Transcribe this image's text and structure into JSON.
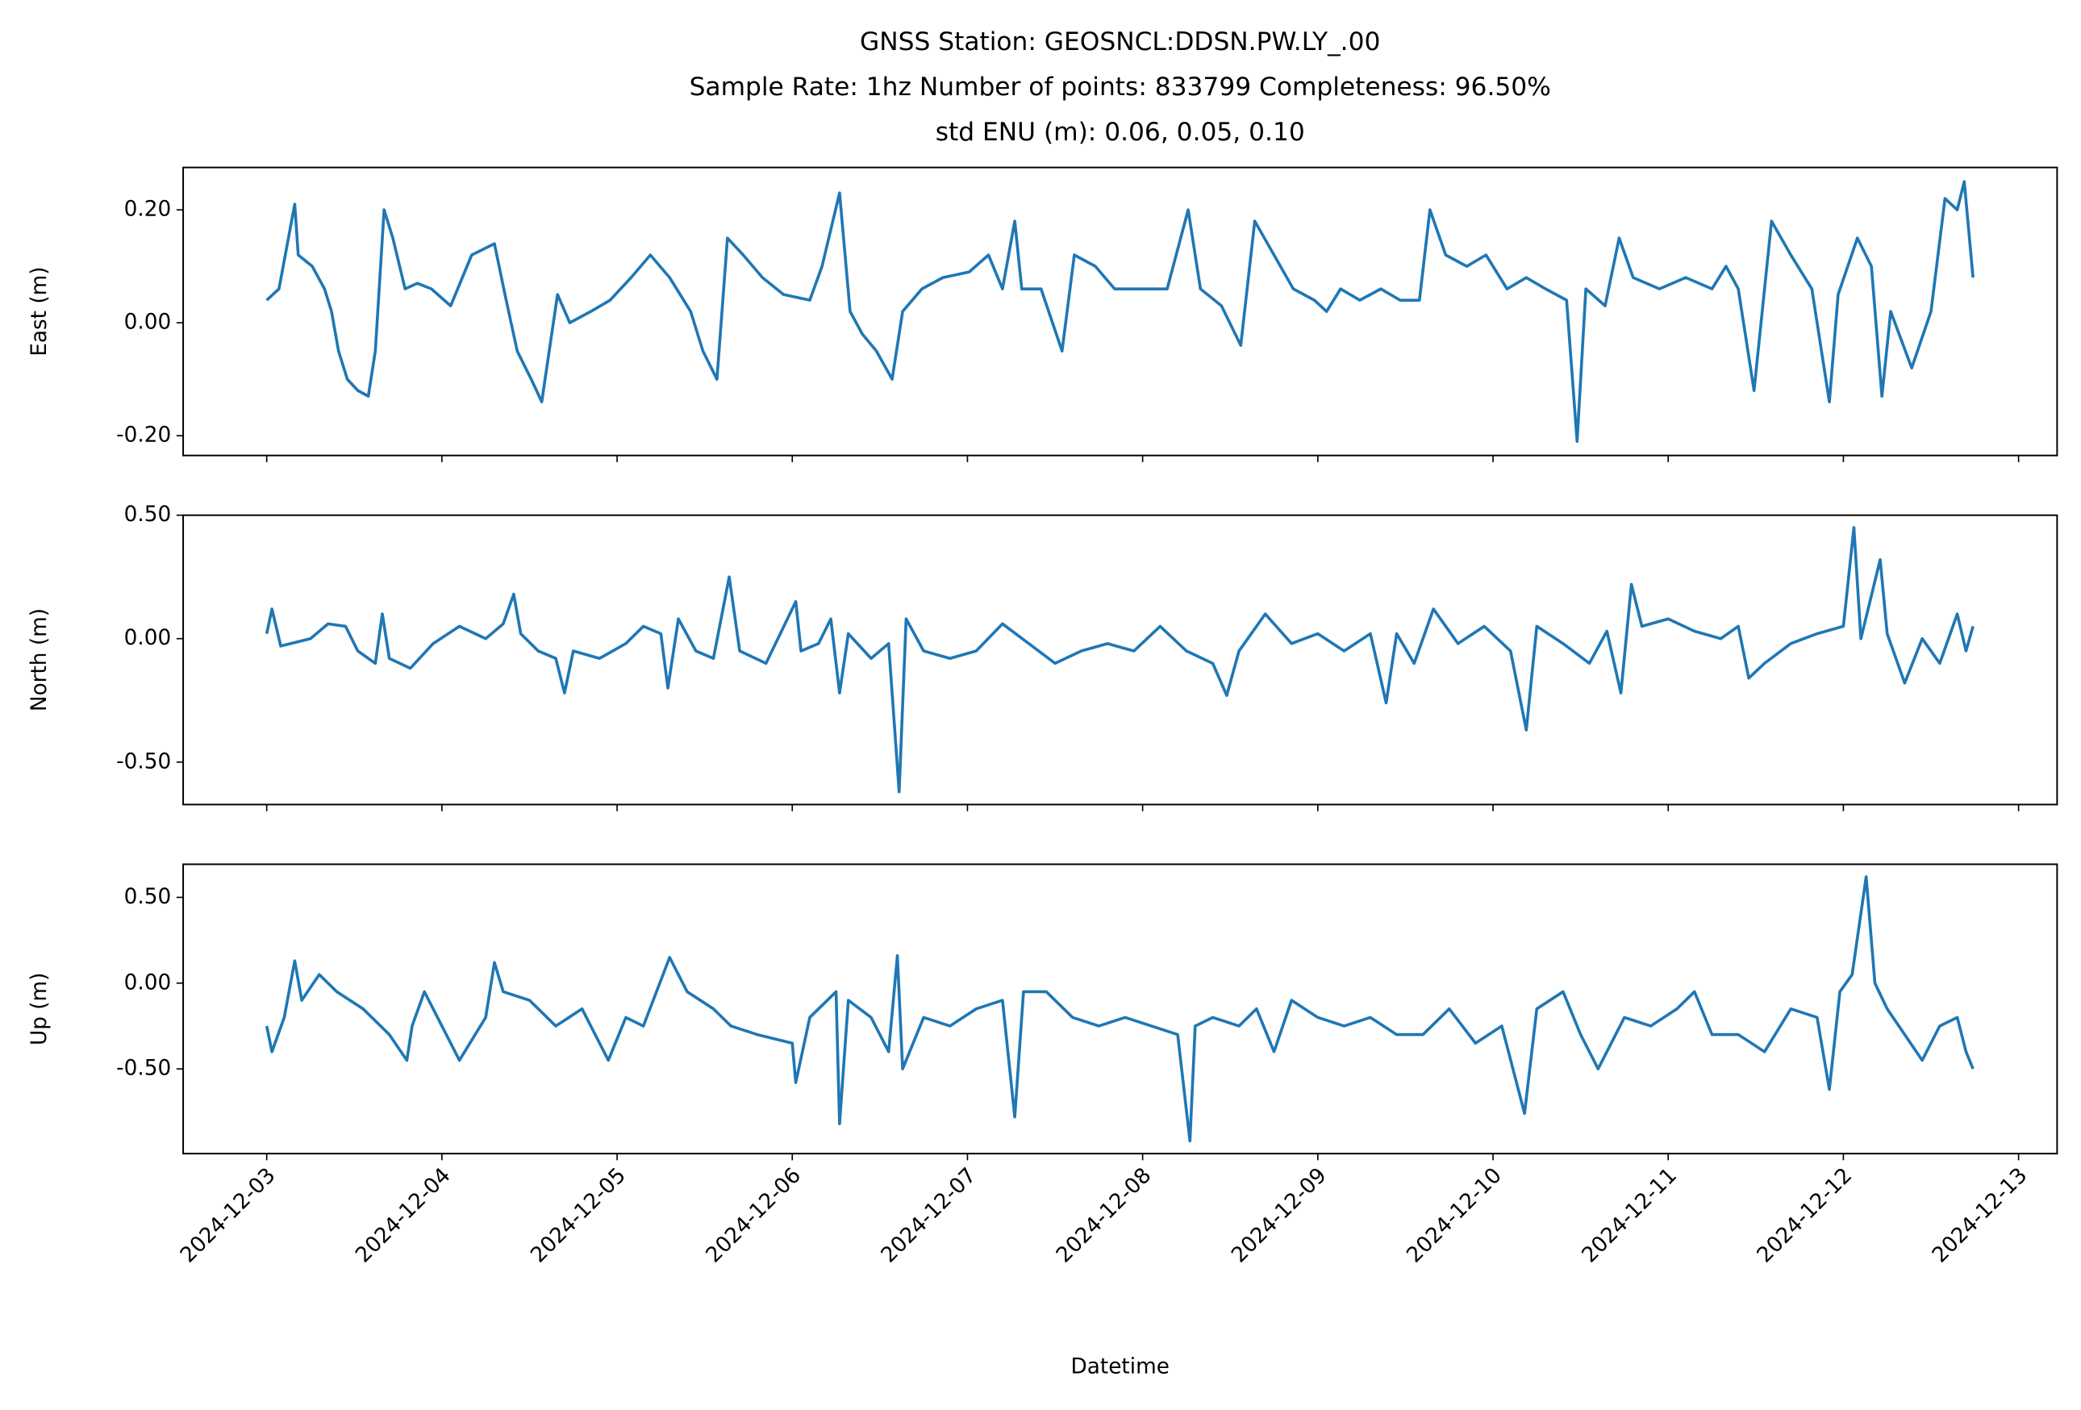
{
  "chart_data": [
    {
      "type": "line",
      "title": [
        "GNSS Station: GEOSNCL:DDSN.PW.LY_.00",
        "Sample Rate: 1hz   Number of points: 833799    Completeness:  96.50%",
        "std ENU (m):  0.06, 0.05, 0.10"
      ],
      "ylabel": "East (m)",
      "color": "#1f77b4",
      "xlim": [
        -0.477,
        10.22
      ],
      "ylim": [
        -0.235,
        0.275
      ],
      "yticks": [
        {
          "value": 0.2,
          "label": "0.20"
        },
        {
          "value": 0,
          "label": "0.00"
        },
        {
          "value": -0.2,
          "label": "-0.20"
        }
      ],
      "x": [
        0.0,
        0.07,
        0.16,
        0.18,
        0.26,
        0.33,
        0.37,
        0.41,
        0.46,
        0.52,
        0.58,
        0.62,
        0.67,
        0.72,
        0.79,
        0.86,
        0.94,
        1.05,
        1.17,
        1.3,
        1.36,
        1.43,
        1.51,
        1.57,
        1.66,
        1.73,
        1.85,
        1.96,
        2.08,
        2.19,
        2.3,
        2.42,
        2.49,
        2.57,
        2.63,
        2.72,
        2.83,
        2.95,
        3.1,
        3.17,
        3.27,
        3.33,
        3.4,
        3.48,
        3.57,
        3.63,
        3.74,
        3.86,
        4.01,
        4.12,
        4.2,
        4.27,
        4.31,
        4.42,
        4.54,
        4.61,
        4.73,
        4.84,
        4.99,
        5.14,
        5.26,
        5.33,
        5.45,
        5.56,
        5.64,
        5.75,
        5.86,
        5.98,
        6.05,
        6.13,
        6.24,
        6.36,
        6.47,
        6.58,
        6.64,
        6.73,
        6.85,
        6.96,
        7.08,
        7.19,
        7.3,
        7.42,
        7.48,
        7.53,
        7.64,
        7.72,
        7.8,
        7.95,
        8.1,
        8.25,
        8.33,
        8.4,
        8.49,
        8.59,
        8.7,
        8.82,
        8.92,
        8.97,
        9.08,
        9.16,
        9.22,
        9.27,
        9.39,
        9.5,
        9.58,
        9.65,
        9.69,
        9.74
      ],
      "values": [
        0.04,
        0.06,
        0.21,
        0.12,
        0.1,
        0.06,
        0.02,
        -0.05,
        -0.1,
        -0.12,
        -0.13,
        -0.05,
        0.2,
        0.15,
        0.06,
        0.07,
        0.06,
        0.03,
        0.12,
        0.14,
        0.05,
        -0.05,
        -0.1,
        -0.14,
        0.05,
        0.0,
        0.02,
        0.04,
        0.08,
        0.12,
        0.08,
        0.02,
        -0.05,
        -0.1,
        0.15,
        0.12,
        0.08,
        0.05,
        0.04,
        0.1,
        0.23,
        0.02,
        -0.02,
        -0.05,
        -0.1,
        0.02,
        0.06,
        0.08,
        0.09,
        0.12,
        0.06,
        0.18,
        0.06,
        0.06,
        -0.05,
        0.12,
        0.1,
        0.06,
        0.06,
        0.06,
        0.2,
        0.06,
        0.03,
        -0.04,
        0.18,
        0.12,
        0.06,
        0.04,
        0.02,
        0.06,
        0.04,
        0.06,
        0.04,
        0.04,
        0.2,
        0.12,
        0.1,
        0.12,
        0.06,
        0.08,
        0.06,
        0.04,
        -0.21,
        0.06,
        0.03,
        0.15,
        0.08,
        0.06,
        0.08,
        0.06,
        0.1,
        0.06,
        -0.12,
        0.18,
        0.12,
        0.06,
        -0.14,
        0.05,
        0.15,
        0.1,
        -0.13,
        0.02,
        -0.08,
        0.02,
        0.22,
        0.2,
        0.25,
        0.08
      ]
    },
    {
      "type": "line",
      "ylabel": "North (m)",
      "color": "#1f77b4",
      "xlim": [
        -0.477,
        10.22
      ],
      "ylim": [
        -0.672,
        0.5
      ],
      "yticks": [
        {
          "value": 0.5,
          "label": "0.50"
        },
        {
          "value": 0,
          "label": "0.00"
        },
        {
          "value": -0.5,
          "label": "-0.50"
        }
      ],
      "x": [
        0.0,
        0.03,
        0.08,
        0.25,
        0.35,
        0.45,
        0.52,
        0.62,
        0.66,
        0.7,
        0.82,
        0.95,
        1.1,
        1.25,
        1.35,
        1.41,
        1.45,
        1.55,
        1.65,
        1.7,
        1.75,
        1.9,
        2.05,
        2.15,
        2.25,
        2.29,
        2.35,
        2.45,
        2.55,
        2.64,
        2.7,
        2.85,
        3.02,
        3.05,
        3.15,
        3.22,
        3.27,
        3.32,
        3.45,
        3.55,
        3.61,
        3.65,
        3.75,
        3.9,
        4.05,
        4.2,
        4.35,
        4.5,
        4.65,
        4.8,
        4.95,
        5.1,
        5.25,
        5.4,
        5.48,
        5.55,
        5.7,
        5.85,
        6.0,
        6.15,
        6.3,
        6.39,
        6.45,
        6.55,
        6.66,
        6.8,
        6.95,
        7.1,
        7.19,
        7.25,
        7.4,
        7.55,
        7.65,
        7.73,
        7.79,
        7.85,
        8.0,
        8.15,
        8.3,
        8.4,
        8.46,
        8.55,
        8.7,
        8.85,
        9.0,
        9.06,
        9.1,
        9.21,
        9.25,
        9.35,
        9.45,
        9.55,
        9.65,
        9.7,
        9.74
      ],
      "values": [
        0.02,
        0.12,
        -0.03,
        0.0,
        0.06,
        0.05,
        -0.05,
        -0.1,
        0.1,
        -0.08,
        -0.12,
        -0.02,
        0.05,
        0.0,
        0.06,
        0.18,
        0.02,
        -0.05,
        -0.08,
        -0.22,
        -0.05,
        -0.08,
        -0.02,
        0.05,
        0.02,
        -0.2,
        0.08,
        -0.05,
        -0.08,
        0.25,
        -0.05,
        -0.1,
        0.15,
        -0.05,
        -0.02,
        0.08,
        -0.22,
        0.02,
        -0.08,
        -0.02,
        -0.62,
        0.08,
        -0.05,
        -0.08,
        -0.05,
        0.06,
        -0.02,
        -0.1,
        -0.05,
        -0.02,
        -0.05,
        0.05,
        -0.05,
        -0.1,
        -0.23,
        -0.05,
        0.1,
        -0.02,
        0.02,
        -0.05,
        0.02,
        -0.26,
        0.02,
        -0.1,
        0.12,
        -0.02,
        0.05,
        -0.05,
        -0.37,
        0.05,
        -0.02,
        -0.1,
        0.03,
        -0.22,
        0.22,
        0.05,
        0.08,
        0.03,
        0.0,
        0.05,
        -0.16,
        -0.1,
        -0.02,
        0.02,
        0.05,
        0.45,
        0.0,
        0.32,
        0.02,
        -0.18,
        0.0,
        -0.1,
        0.1,
        -0.05,
        0.05
      ]
    },
    {
      "type": "line",
      "ylabel": "Up (m)",
      "xlabel": "Datetime",
      "color": "#1f77b4",
      "xlim": [
        -0.477,
        10.22
      ],
      "ylim": [
        -0.994,
        0.693
      ],
      "yticks": [
        {
          "value": 0.5,
          "label": "0.50"
        },
        {
          "value": 0,
          "label": "0.00"
        },
        {
          "value": -0.5,
          "label": "-0.50"
        }
      ],
      "xticks": [
        {
          "value": 0,
          "label": "2024-12-03"
        },
        {
          "value": 1,
          "label": "2024-12-04"
        },
        {
          "value": 2,
          "label": "2024-12-05"
        },
        {
          "value": 3,
          "label": "2024-12-06"
        },
        {
          "value": 4,
          "label": "2024-12-07"
        },
        {
          "value": 5,
          "label": "2024-12-08"
        },
        {
          "value": 6,
          "label": "2024-12-09"
        },
        {
          "value": 7,
          "label": "2024-12-10"
        },
        {
          "value": 8,
          "label": "2024-12-11"
        },
        {
          "value": 9,
          "label": "2024-12-12"
        },
        {
          "value": 10,
          "label": "2024-12-13"
        }
      ],
      "x": [
        0.0,
        0.03,
        0.1,
        0.16,
        0.2,
        0.3,
        0.4,
        0.55,
        0.7,
        0.8,
        0.83,
        0.9,
        1.0,
        1.1,
        1.25,
        1.3,
        1.35,
        1.5,
        1.65,
        1.8,
        1.95,
        2.05,
        2.15,
        2.3,
        2.4,
        2.55,
        2.65,
        2.8,
        3.0,
        3.02,
        3.1,
        3.25,
        3.27,
        3.32,
        3.45,
        3.55,
        3.6,
        3.63,
        3.75,
        3.9,
        4.05,
        4.2,
        4.27,
        4.32,
        4.45,
        4.6,
        4.75,
        4.9,
        5.05,
        5.2,
        5.27,
        5.3,
        5.4,
        5.55,
        5.65,
        5.75,
        5.85,
        6.0,
        6.15,
        6.3,
        6.45,
        6.6,
        6.75,
        6.9,
        7.05,
        7.18,
        7.25,
        7.4,
        7.5,
        7.6,
        7.75,
        7.9,
        8.05,
        8.15,
        8.25,
        8.4,
        8.55,
        8.7,
        8.85,
        8.92,
        8.98,
        9.05,
        9.13,
        9.18,
        9.25,
        9.35,
        9.45,
        9.55,
        9.65,
        9.7,
        9.74
      ],
      "values": [
        -0.25,
        -0.4,
        -0.2,
        0.13,
        -0.1,
        0.05,
        -0.05,
        -0.15,
        -0.3,
        -0.45,
        -0.25,
        -0.05,
        -0.25,
        -0.45,
        -0.2,
        0.12,
        -0.05,
        -0.1,
        -0.25,
        -0.15,
        -0.45,
        -0.2,
        -0.25,
        0.15,
        -0.05,
        -0.15,
        -0.25,
        -0.3,
        -0.35,
        -0.58,
        -0.2,
        -0.05,
        -0.82,
        -0.1,
        -0.2,
        -0.4,
        0.16,
        -0.5,
        -0.2,
        -0.25,
        -0.15,
        -0.1,
        -0.78,
        -0.05,
        -0.05,
        -0.2,
        -0.25,
        -0.2,
        -0.25,
        -0.3,
        -0.92,
        -0.25,
        -0.2,
        -0.25,
        -0.15,
        -0.4,
        -0.1,
        -0.2,
        -0.25,
        -0.2,
        -0.3,
        -0.3,
        -0.15,
        -0.35,
        -0.25,
        -0.76,
        -0.15,
        -0.05,
        -0.3,
        -0.5,
        -0.2,
        -0.25,
        -0.15,
        -0.05,
        -0.3,
        -0.3,
        -0.4,
        -0.15,
        -0.2,
        -0.62,
        -0.05,
        0.05,
        0.62,
        0.0,
        -0.15,
        -0.3,
        -0.45,
        -0.25,
        -0.2,
        -0.4,
        -0.5
      ]
    }
  ]
}
